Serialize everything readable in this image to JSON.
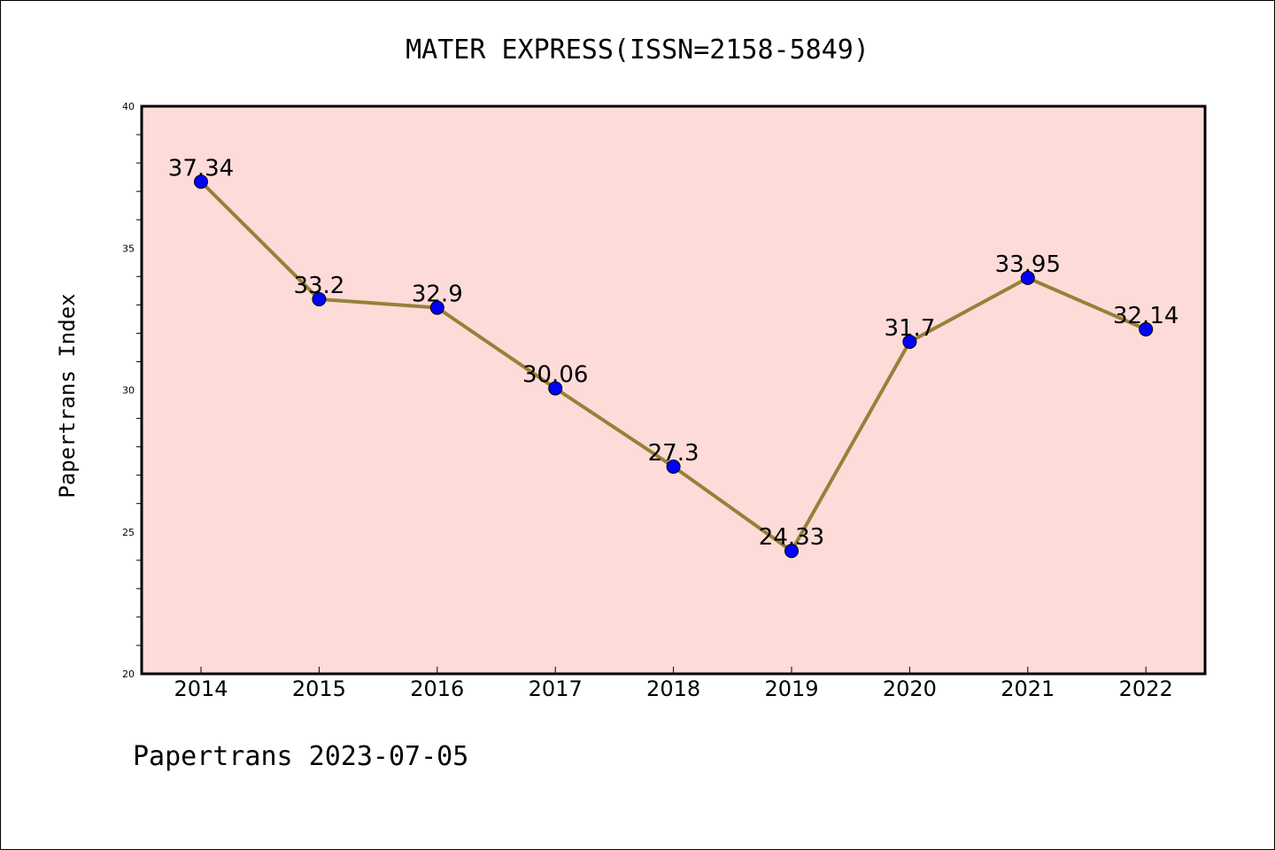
{
  "chart_data": {
    "type": "line",
    "title": "MATER EXPRESS(ISSN=2158-5849)",
    "ylabel": "Papertrans Index",
    "xlabel": "",
    "categories": [
      "2014",
      "2015",
      "2016",
      "2017",
      "2018",
      "2019",
      "2020",
      "2021",
      "2022"
    ],
    "values": [
      37.34,
      33.2,
      32.9,
      30.06,
      27.3,
      24.33,
      31.7,
      33.95,
      32.14
    ],
    "data_labels": [
      "37.34",
      "33.2",
      "32.9",
      "30.06",
      "27.3",
      "24.33",
      "31.7",
      "33.95",
      "32.14"
    ],
    "ylim": [
      20,
      40
    ],
    "yticks": [
      "20",
      "25",
      "30",
      "35",
      "40"
    ],
    "grid": false,
    "legend": "none",
    "colors": {
      "plot_background": "#fddbd8",
      "line": "#958139",
      "marker": "#0000ff"
    }
  },
  "footer": "Papertrans 2023-07-05"
}
